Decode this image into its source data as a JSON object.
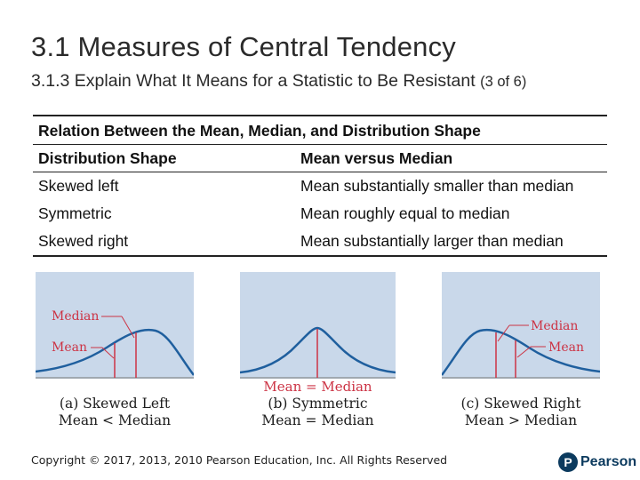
{
  "slide": {
    "title": "3.1 Measures of Central Tendency",
    "subtitle": "3.1.3 Explain What It Means for a Statistic to Be Resistant",
    "subtitle_part": "(3 of 6)"
  },
  "table": {
    "caption": "Relation Between the Mean, Median, and Distribution Shape",
    "headers": [
      "Distribution Shape",
      "Mean versus Median"
    ],
    "rows": [
      [
        "Skewed left",
        "Mean substantially smaller than median"
      ],
      [
        "Symmetric",
        "Mean roughly equal to median"
      ],
      [
        "Skewed right",
        "Mean substantially larger than median"
      ]
    ]
  },
  "figures": {
    "accent_color": "#cc3344",
    "curve_color": "#1f5f9e",
    "panel_color": "#c9d8ea",
    "a": {
      "median_label": "Median",
      "mean_label": "Mean",
      "caption_1": "(a) Skewed Left",
      "caption_2": "Mean < Median"
    },
    "b": {
      "center_label": "Mean = Median",
      "caption_1": "(b) Symmetric",
      "caption_2": "Mean = Median"
    },
    "c": {
      "median_label": "Median",
      "mean_label": "Mean",
      "caption_1": "(c) Skewed Right",
      "caption_2": "Mean > Median"
    }
  },
  "footer": {
    "copyright": "Copyright © 2017, 2013, 2010 Pearson Education, Inc. All Rights Reserved",
    "logo_letter": "P",
    "logo_text": "Pearson"
  }
}
